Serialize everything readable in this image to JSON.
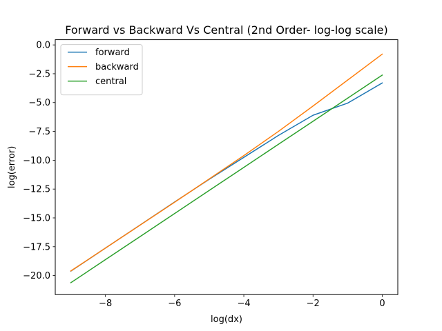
{
  "chart_data": {
    "type": "line",
    "title": "Forward vs Backward Vs Central (2nd Order- log-log scale)",
    "xlabel": "log(dx)",
    "ylabel": "log(error)",
    "xlim": [
      -9.45,
      0.45
    ],
    "ylim": [
      -21.65,
      0.45
    ],
    "xticks": [
      -8,
      -6,
      -4,
      -2,
      0
    ],
    "xtick_labels": [
      "−8",
      "−6",
      "−4",
      "−2",
      "0"
    ],
    "yticks": [
      0.0,
      -2.5,
      -5.0,
      -7.5,
      -10.0,
      -12.5,
      -15.0,
      -17.5,
      -20.0
    ],
    "ytick_labels": [
      "0.0",
      "−2.5",
      "−5.0",
      "−7.5",
      "−10.0",
      "−12.5",
      "−15.0",
      "−17.5",
      "−20.0"
    ],
    "grid": false,
    "legend_position": "top-left",
    "x": [
      -9,
      -8,
      -7,
      -6,
      -5,
      -4,
      -3,
      -2,
      -1,
      0
    ],
    "series": [
      {
        "name": "forward",
        "color": "#1f77b4",
        "values": [
          -19.62,
          -17.62,
          -15.62,
          -13.62,
          -11.65,
          -9.75,
          -7.85,
          -6.1,
          -5.05,
          -3.3
        ]
      },
      {
        "name": "backward",
        "color": "#ff7f0e",
        "values": [
          -19.6,
          -17.62,
          -15.63,
          -13.64,
          -11.62,
          -9.6,
          -7.5,
          -5.3,
          -3.05,
          -0.8
        ]
      },
      {
        "name": "central",
        "color": "#2ca02c",
        "values": [
          -20.62,
          -18.62,
          -16.62,
          -14.62,
          -12.62,
          -10.62,
          -8.62,
          -6.62,
          -4.62,
          -2.62
        ]
      }
    ]
  }
}
